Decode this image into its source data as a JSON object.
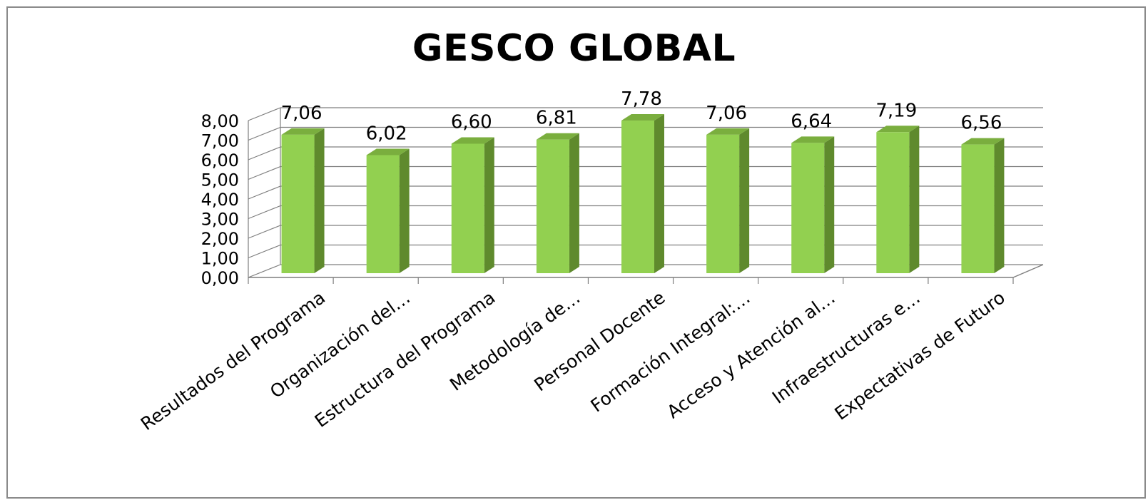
{
  "chart_data": {
    "type": "bar",
    "title": "GESCO GLOBAL",
    "categories": [
      "Resultados del Programa",
      "Organización del…",
      "Estructura del Programa",
      "Metodología de…",
      "Personal Docente",
      "Formación Integral:…",
      "Acceso y Atención al…",
      "Infraestructuras e…",
      "Expectativas de Futuro"
    ],
    "values": [
      7.06,
      6.02,
      6.6,
      6.81,
      7.78,
      7.06,
      6.64,
      7.19,
      6.56
    ],
    "data_labels": [
      "7,06",
      "6,02",
      "6,60",
      "6,81",
      "7,78",
      "7,06",
      "6,64",
      "7,19",
      "6,56"
    ],
    "y_ticks": [
      "0,00",
      "1,00",
      "2,00",
      "3,00",
      "4,00",
      "5,00",
      "6,00",
      "7,00",
      "8,00"
    ],
    "ylim": [
      0,
      8
    ],
    "xlabel": "",
    "ylabel": "",
    "grid": true,
    "legend": "none",
    "colors": {
      "bar_front": "#92d050",
      "bar_side": "#5f8a2d",
      "bar_top": "#7aae3e",
      "grid": "#7f7f7f"
    }
  }
}
